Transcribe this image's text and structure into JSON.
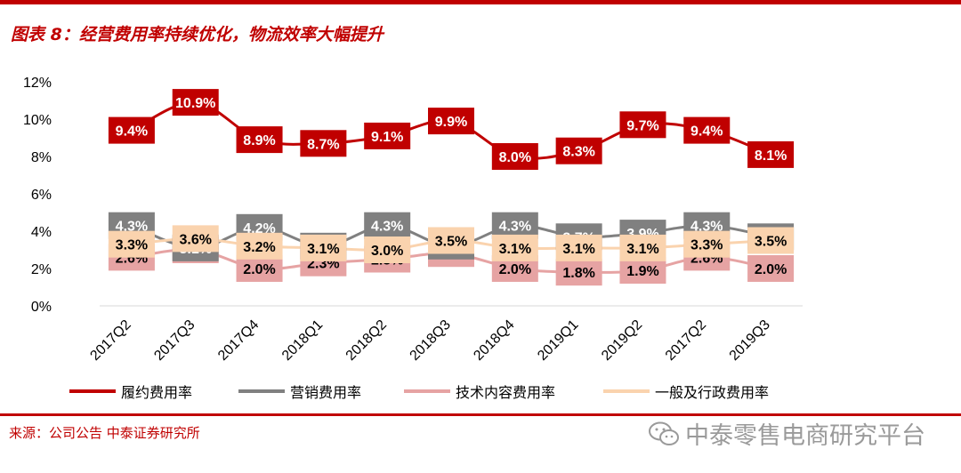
{
  "title": "图表 8：经营费用率持续优化，物流效率大幅提升",
  "source": "来源：公司公告 中泰证券研究所",
  "watermark": "中泰零售电商研究平台",
  "chart_data": {
    "type": "line",
    "categories": [
      "2017Q2",
      "2017Q3",
      "2017Q4",
      "2018Q1",
      "2018Q2",
      "2018Q3",
      "2018Q4",
      "2019Q1",
      "2019Q2",
      "2017Q2",
      "2019Q3"
    ],
    "ylim": [
      0,
      12
    ],
    "yticks": [
      "0%",
      "2%",
      "4%",
      "6%",
      "8%",
      "10%",
      "12%"
    ],
    "series": [
      {
        "name": "履约费用率",
        "color": "#c00000",
        "label_bg": "#c00000",
        "label_color": "#ffffff",
        "values": [
          9.4,
          10.9,
          8.9,
          8.7,
          9.1,
          9.9,
          8.0,
          8.3,
          9.7,
          9.4,
          8.1
        ],
        "labels": [
          "9.4%",
          "10.9%",
          "8.9%",
          "8.7%",
          "9.1%",
          "9.9%",
          "8.0%",
          "8.3%",
          "9.7%",
          "9.4%",
          "8.1%"
        ]
      },
      {
        "name": "营销费用率",
        "color": "#808080",
        "label_bg": "#808080",
        "label_color": "#ffffff",
        "values": [
          4.3,
          3.1,
          4.2,
          3.2,
          4.3,
          3.2,
          4.3,
          3.7,
          3.9,
          4.3,
          3.7
        ],
        "labels": [
          "4.3%",
          "3.1%",
          "4.2%",
          "3.2%",
          "4.3%",
          "3.2%",
          "4.3%",
          "3.7%",
          "3.9%",
          "4.3%",
          "3.7%"
        ]
      },
      {
        "name": "技术内容费用率",
        "color": "#e6a3a3",
        "label_bg": "#e6a3a3",
        "label_color": "#000000",
        "values": [
          2.6,
          3.0,
          2.0,
          2.3,
          2.5,
          2.8,
          2.0,
          1.8,
          1.9,
          2.6,
          2.0
        ],
        "labels": [
          "2.6%",
          "3.0%",
          "2.0%",
          "2.3%",
          "2.5%",
          "2.8%",
          "2.0%",
          "1.8%",
          "1.9%",
          "2.6%",
          "2.0%"
        ]
      },
      {
        "name": "一般及行政费用率",
        "color": "#fad3ae",
        "label_bg": "#fad3ae",
        "label_color": "#000000",
        "values": [
          3.3,
          3.6,
          3.2,
          3.1,
          3.0,
          3.5,
          3.1,
          3.1,
          3.1,
          3.3,
          3.5
        ],
        "labels": [
          "3.3%",
          "3.6%",
          "3.2%",
          "3.1%",
          "3.0%",
          "3.5%",
          "3.1%",
          "3.1%",
          "3.1%",
          "3.3%",
          "3.5%"
        ]
      }
    ],
    "legend_position": "bottom",
    "grid": false
  }
}
